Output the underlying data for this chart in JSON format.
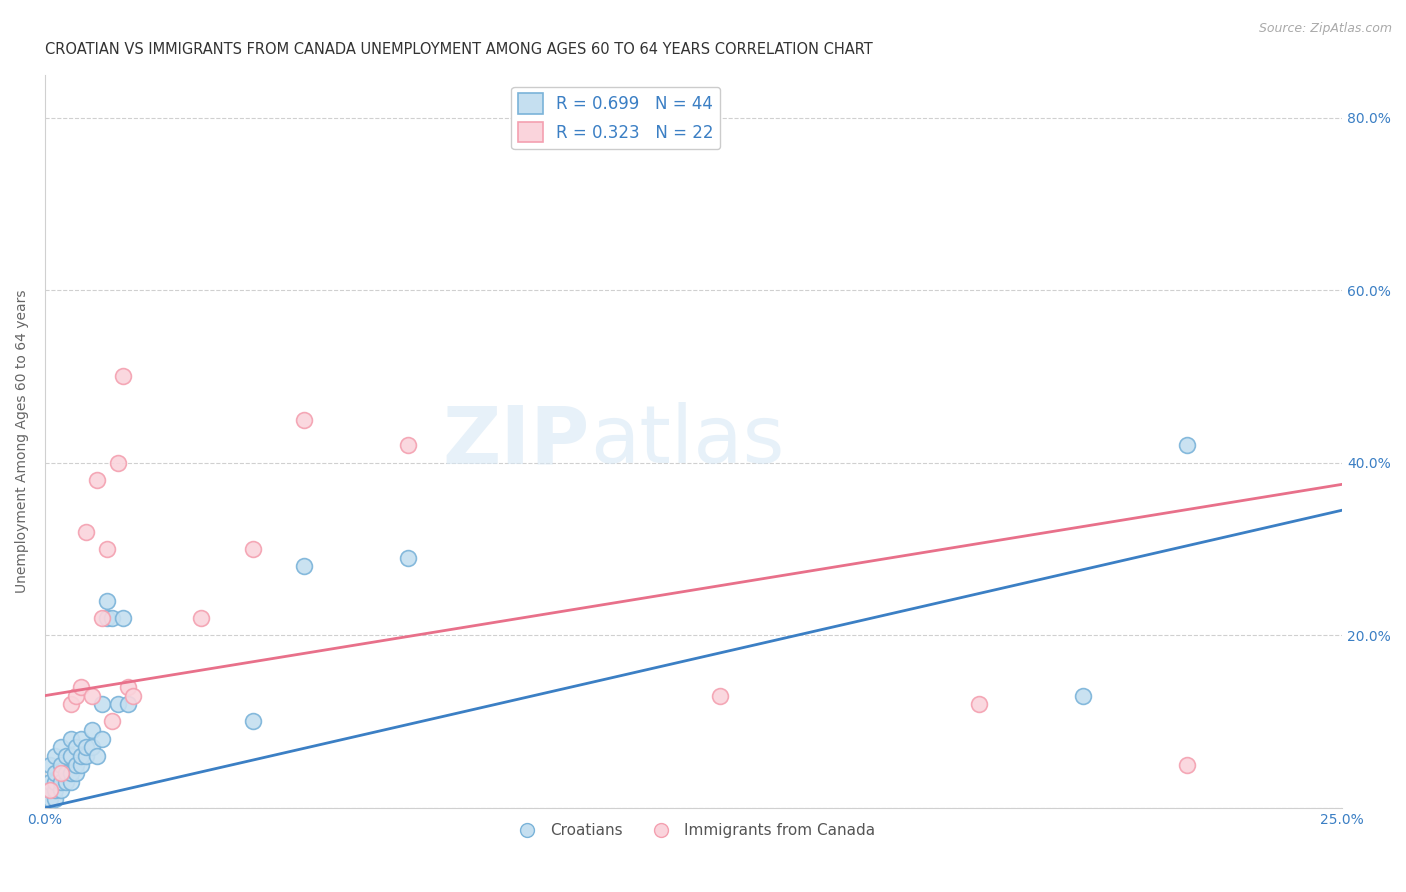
{
  "title": "CROATIAN VS IMMIGRANTS FROM CANADA UNEMPLOYMENT AMONG AGES 60 TO 64 YEARS CORRELATION CHART",
  "source": "Source: ZipAtlas.com",
  "ylabel": "Unemployment Among Ages 60 to 64 years",
  "xlim": [
    0.0,
    0.25
  ],
  "ylim": [
    0.0,
    0.85
  ],
  "xticks": [
    0.0,
    0.05,
    0.1,
    0.15,
    0.2,
    0.25
  ],
  "yticks": [
    0.0,
    0.2,
    0.4,
    0.6,
    0.8
  ],
  "xtick_labels": [
    "0.0%",
    "",
    "",
    "",
    "",
    "25.0%"
  ],
  "ytick_labels": [
    "",
    "20.0%",
    "40.0%",
    "60.0%",
    "80.0%"
  ],
  "blue_edge": "#7ab3d9",
  "blue_fill": "#c5dff0",
  "pink_edge": "#f4a0b0",
  "pink_fill": "#fad4dc",
  "line_blue": "#3b7fc4",
  "line_pink": "#e8708a",
  "croatians_x": [
    0.001,
    0.001,
    0.001,
    0.001,
    0.002,
    0.002,
    0.002,
    0.002,
    0.002,
    0.003,
    0.003,
    0.003,
    0.003,
    0.004,
    0.004,
    0.004,
    0.005,
    0.005,
    0.005,
    0.005,
    0.006,
    0.006,
    0.006,
    0.007,
    0.007,
    0.007,
    0.008,
    0.008,
    0.009,
    0.009,
    0.01,
    0.011,
    0.011,
    0.012,
    0.012,
    0.013,
    0.014,
    0.015,
    0.016,
    0.04,
    0.05,
    0.07,
    0.2,
    0.22
  ],
  "croatians_y": [
    0.01,
    0.02,
    0.03,
    0.05,
    0.01,
    0.02,
    0.03,
    0.04,
    0.06,
    0.02,
    0.03,
    0.05,
    0.07,
    0.03,
    0.04,
    0.06,
    0.03,
    0.04,
    0.06,
    0.08,
    0.04,
    0.05,
    0.07,
    0.05,
    0.06,
    0.08,
    0.06,
    0.07,
    0.07,
    0.09,
    0.06,
    0.08,
    0.12,
    0.22,
    0.24,
    0.22,
    0.12,
    0.22,
    0.12,
    0.1,
    0.28,
    0.29,
    0.13,
    0.42
  ],
  "canada_x": [
    0.001,
    0.003,
    0.005,
    0.006,
    0.007,
    0.008,
    0.009,
    0.01,
    0.011,
    0.012,
    0.013,
    0.014,
    0.015,
    0.016,
    0.017,
    0.03,
    0.04,
    0.05,
    0.07,
    0.13,
    0.18,
    0.22
  ],
  "canada_y": [
    0.02,
    0.04,
    0.12,
    0.13,
    0.14,
    0.32,
    0.13,
    0.38,
    0.22,
    0.3,
    0.1,
    0.4,
    0.5,
    0.14,
    0.13,
    0.22,
    0.3,
    0.45,
    0.42,
    0.13,
    0.12,
    0.05
  ],
  "blue_line_x0": 0.0,
  "blue_line_y0": 0.0,
  "blue_line_x1": 0.25,
  "blue_line_y1": 0.345,
  "pink_line_x0": 0.0,
  "pink_line_y0": 0.13,
  "pink_line_x1": 0.25,
  "pink_line_y1": 0.375,
  "legend_blue_r": "R = 0.699",
  "legend_blue_n": "N = 44",
  "legend_pink_r": "R = 0.323",
  "legend_pink_n": "N = 22",
  "watermark": "ZIPatlas",
  "legend_label_blue": "Croatians",
  "legend_label_pink": "Immigrants from Canada",
  "title_fontsize": 10.5,
  "axis_label_fontsize": 10,
  "tick_fontsize": 10,
  "background_color": "#ffffff",
  "grid_color": "#d0d0d0"
}
